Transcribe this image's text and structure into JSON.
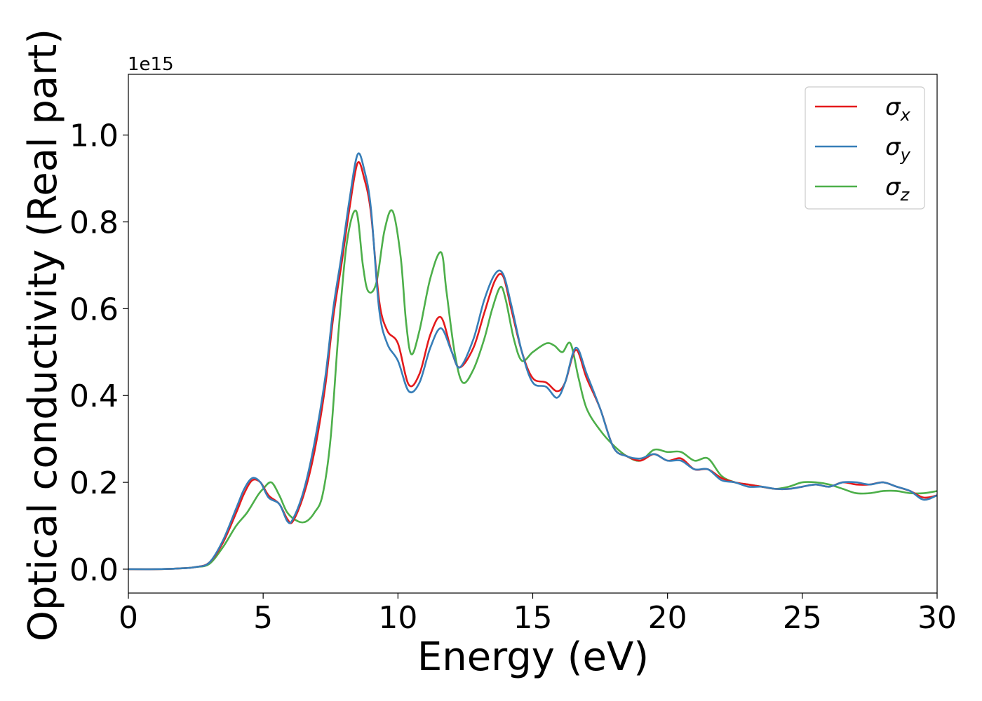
{
  "chart_data": {
    "type": "line",
    "title": "",
    "xlabel": "Energy (eV)",
    "ylabel": "Optical conductivity (Real part)",
    "y_offset_label": "1e15",
    "xlim": [
      0,
      30
    ],
    "ylim": [
      -0.055,
      1.14
    ],
    "xticks": [
      0,
      5,
      10,
      15,
      20,
      25,
      30
    ],
    "xtick_labels": [
      "0",
      "5",
      "10",
      "15",
      "20",
      "25",
      "30"
    ],
    "yticks": [
      0.0,
      0.2,
      0.4,
      0.6,
      0.8,
      1.0
    ],
    "ytick_labels": [
      "0.0",
      "0.2",
      "0.4",
      "0.6",
      "0.8",
      "1.0"
    ],
    "grid": false,
    "legend_position": "top-right",
    "series": [
      {
        "name": "σx",
        "label_base": "σ",
        "label_sub": "x",
        "color": "#e41a1c",
        "x": [
          0,
          1,
          2,
          2.5,
          3,
          3.5,
          4,
          4.3,
          4.6,
          4.9,
          5.2,
          5.6,
          5.9,
          6.1,
          6.5,
          6.9,
          7.3,
          7.6,
          7.9,
          8.2,
          8.5,
          8.75,
          9,
          9.3,
          9.6,
          10,
          10.4,
          10.8,
          11.2,
          11.6,
          12,
          12.3,
          12.8,
          13.2,
          13.6,
          13.9,
          14.2,
          14.6,
          15,
          15.5,
          15.9,
          16.2,
          16.6,
          17,
          17.5,
          18,
          18.5,
          19,
          19.5,
          20,
          20.5,
          21,
          21.5,
          22,
          22.5,
          23,
          23.5,
          24,
          24.5,
          25,
          25.5,
          26,
          26.5,
          27,
          27.5,
          28,
          28.5,
          29,
          29.5,
          30
        ],
        "y": [
          0.0,
          0.0,
          0.002,
          0.005,
          0.015,
          0.06,
          0.13,
          0.175,
          0.205,
          0.2,
          0.17,
          0.15,
          0.115,
          0.11,
          0.17,
          0.27,
          0.42,
          0.58,
          0.7,
          0.83,
          0.935,
          0.9,
          0.82,
          0.62,
          0.55,
          0.52,
          0.425,
          0.45,
          0.54,
          0.58,
          0.5,
          0.465,
          0.51,
          0.59,
          0.665,
          0.675,
          0.6,
          0.5,
          0.44,
          0.43,
          0.41,
          0.43,
          0.505,
          0.44,
          0.37,
          0.28,
          0.26,
          0.25,
          0.265,
          0.25,
          0.255,
          0.23,
          0.23,
          0.21,
          0.2,
          0.195,
          0.19,
          0.185,
          0.185,
          0.19,
          0.195,
          0.19,
          0.2,
          0.195,
          0.195,
          0.2,
          0.19,
          0.18,
          0.165,
          0.17
        ]
      },
      {
        "name": "σy",
        "label_base": "σ",
        "label_sub": "y",
        "color": "#377eb8",
        "x": [
          0,
          1,
          2,
          2.5,
          3,
          3.5,
          4,
          4.3,
          4.6,
          4.9,
          5.2,
          5.6,
          5.9,
          6.1,
          6.5,
          6.9,
          7.3,
          7.6,
          7.9,
          8.2,
          8.5,
          8.75,
          9,
          9.3,
          9.6,
          10,
          10.4,
          10.8,
          11.2,
          11.6,
          12,
          12.3,
          12.8,
          13.2,
          13.6,
          13.9,
          14.2,
          14.6,
          15,
          15.5,
          15.9,
          16.2,
          16.6,
          17,
          17.5,
          18,
          18.5,
          19,
          19.5,
          20,
          20.5,
          21,
          21.5,
          22,
          22.5,
          23,
          23.5,
          24,
          24.5,
          25,
          25.5,
          26,
          26.5,
          27,
          27.5,
          28,
          28.5,
          29,
          29.5,
          30
        ],
        "y": [
          0.0,
          0.0,
          0.002,
          0.005,
          0.015,
          0.065,
          0.14,
          0.185,
          0.21,
          0.2,
          0.165,
          0.15,
          0.11,
          0.115,
          0.18,
          0.29,
          0.44,
          0.6,
          0.72,
          0.85,
          0.955,
          0.92,
          0.83,
          0.6,
          0.52,
          0.48,
          0.41,
          0.43,
          0.51,
          0.555,
          0.5,
          0.465,
          0.53,
          0.62,
          0.68,
          0.68,
          0.61,
          0.5,
          0.43,
          0.42,
          0.395,
          0.43,
          0.51,
          0.45,
          0.37,
          0.28,
          0.26,
          0.255,
          0.265,
          0.25,
          0.25,
          0.23,
          0.23,
          0.205,
          0.2,
          0.19,
          0.19,
          0.185,
          0.185,
          0.19,
          0.195,
          0.19,
          0.2,
          0.2,
          0.195,
          0.2,
          0.19,
          0.18,
          0.16,
          0.17
        ]
      },
      {
        "name": "σz",
        "label_base": "σ",
        "label_sub": "z",
        "color": "#4daf4a",
        "x": [
          0,
          1,
          2,
          2.5,
          3,
          3.5,
          4,
          4.4,
          4.8,
          5.0,
          5.3,
          5.6,
          5.9,
          6.3,
          6.6,
          6.9,
          7.2,
          7.5,
          7.8,
          8.1,
          8.45,
          8.7,
          8.9,
          9.2,
          9.5,
          9.8,
          10.1,
          10.3,
          10.5,
          10.8,
          11.2,
          11.6,
          11.8,
          12.1,
          12.4,
          12.8,
          13.2,
          13.5,
          13.8,
          14.0,
          14.3,
          14.6,
          15.0,
          15.5,
          15.8,
          16.1,
          16.4,
          16.7,
          17.0,
          17.5,
          18.0,
          18.5,
          19.0,
          19.5,
          20.0,
          20.5,
          21.0,
          21.5,
          22.0,
          22.5,
          23.0,
          23.5,
          24.0,
          24.5,
          25.0,
          25.5,
          26.0,
          26.5,
          27.0,
          27.5,
          28.0,
          28.5,
          29.0,
          29.5,
          30.0
        ],
        "y": [
          0.0,
          0.0,
          0.002,
          0.005,
          0.012,
          0.05,
          0.1,
          0.13,
          0.17,
          0.185,
          0.2,
          0.17,
          0.13,
          0.11,
          0.11,
          0.13,
          0.17,
          0.3,
          0.55,
          0.75,
          0.825,
          0.7,
          0.64,
          0.66,
          0.78,
          0.825,
          0.72,
          0.57,
          0.495,
          0.55,
          0.67,
          0.73,
          0.64,
          0.5,
          0.43,
          0.46,
          0.53,
          0.6,
          0.65,
          0.62,
          0.53,
          0.48,
          0.5,
          0.52,
          0.515,
          0.5,
          0.52,
          0.44,
          0.37,
          0.32,
          0.285,
          0.26,
          0.25,
          0.275,
          0.27,
          0.27,
          0.25,
          0.255,
          0.215,
          0.2,
          0.195,
          0.19,
          0.185,
          0.19,
          0.2,
          0.2,
          0.195,
          0.185,
          0.175,
          0.175,
          0.18,
          0.18,
          0.175,
          0.175,
          0.18
        ]
      }
    ]
  }
}
